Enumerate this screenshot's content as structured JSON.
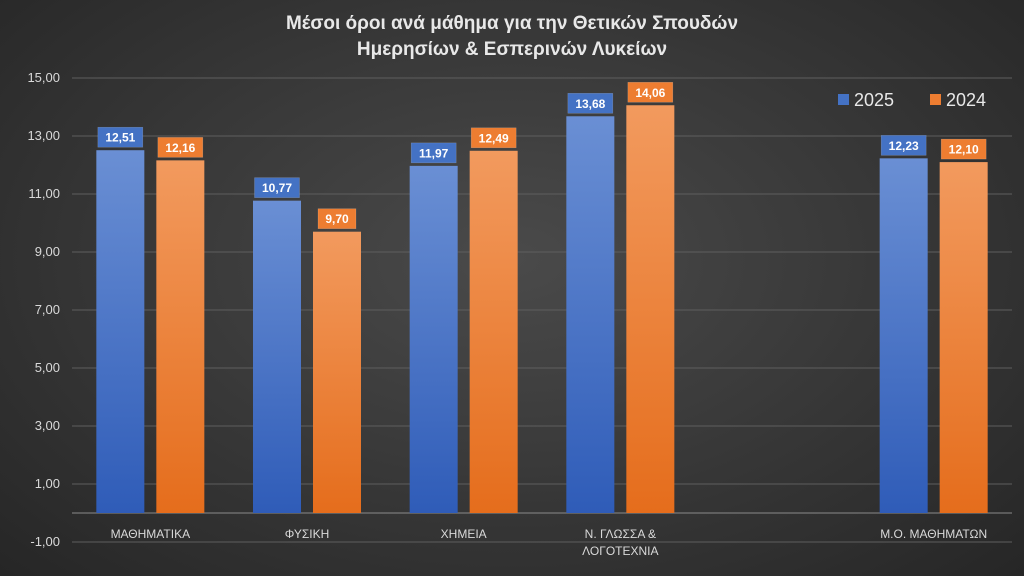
{
  "chart_data": {
    "type": "bar",
    "title_lines": [
      "Μέσοι όροι ανά μάθημα για την Θετικών Σπουδών",
      "Ημερησίων & Εσπερινών Λυκείων"
    ],
    "categories": [
      [
        "ΜΑΘΗΜΑΤΙΚΑ"
      ],
      [
        "ΦΥΣΙΚΗ"
      ],
      [
        "ΧΗΜΕΙΑ"
      ],
      [
        "Ν. ΓΛΩΣΣΑ &",
        "ΛΟΓΟΤΕΧΝΙΑ"
      ],
      [
        ""
      ],
      [
        "Μ.Ο. ΜΑΘΗΜΑΤΩΝ"
      ]
    ],
    "series": [
      {
        "name": "2025",
        "color": "#4472C4",
        "values": [
          12.51,
          10.77,
          11.97,
          13.68,
          null,
          12.23
        ],
        "labels": [
          "12,51",
          "10,77",
          "11,97",
          "13,68",
          "",
          "12,23"
        ]
      },
      {
        "name": "2024",
        "color": "#ED7D31",
        "values": [
          12.16,
          9.7,
          12.49,
          14.06,
          null,
          12.1
        ],
        "labels": [
          "12,16",
          "9,70",
          "12,49",
          "14,06",
          "",
          "12,10"
        ]
      }
    ],
    "ylim": [
      -1,
      15
    ],
    "yticks": [
      -1,
      1,
      3,
      5,
      7,
      9,
      11,
      13,
      15
    ],
    "ytick_labels": [
      "-1,00",
      "1,00",
      "3,00",
      "5,00",
      "7,00",
      "9,00",
      "11,00",
      "13,00",
      "15,00"
    ],
    "grid": true,
    "legend_position": "top-right",
    "data_labels": true
  }
}
